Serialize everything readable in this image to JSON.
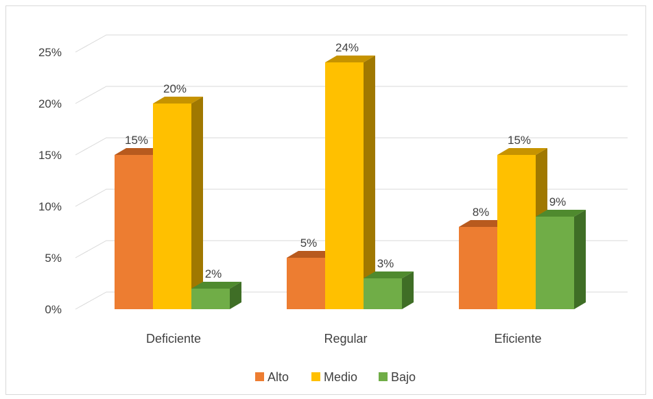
{
  "chart_data": {
    "type": "bar",
    "categories": [
      "Deficiente",
      "Regular",
      "Eficiente"
    ],
    "series": [
      {
        "name": "Alto",
        "values": [
          15,
          5,
          8
        ],
        "labels": [
          "15%",
          "5%",
          "8%"
        ],
        "color": "#ED7D31",
        "top": "#B85A1E",
        "side": "#A14F18"
      },
      {
        "name": "Medio",
        "values": [
          20,
          24,
          15
        ],
        "labels": [
          "20%",
          "24%",
          "15%"
        ],
        "color": "#FFC000",
        "top": "#C69300",
        "side": "#A07800"
      },
      {
        "name": "Bajo",
        "values": [
          2,
          3,
          9
        ],
        "labels": [
          "2%",
          "3%",
          "9%"
        ],
        "color": "#70AD47",
        "top": "#4F8A2E",
        "side": "#3F6E26"
      }
    ],
    "yticks": [
      "0%",
      "5%",
      "10%",
      "15%",
      "20%",
      "25%"
    ],
    "ylim": [
      0,
      25
    ],
    "grid": true,
    "legend": "bottom"
  }
}
